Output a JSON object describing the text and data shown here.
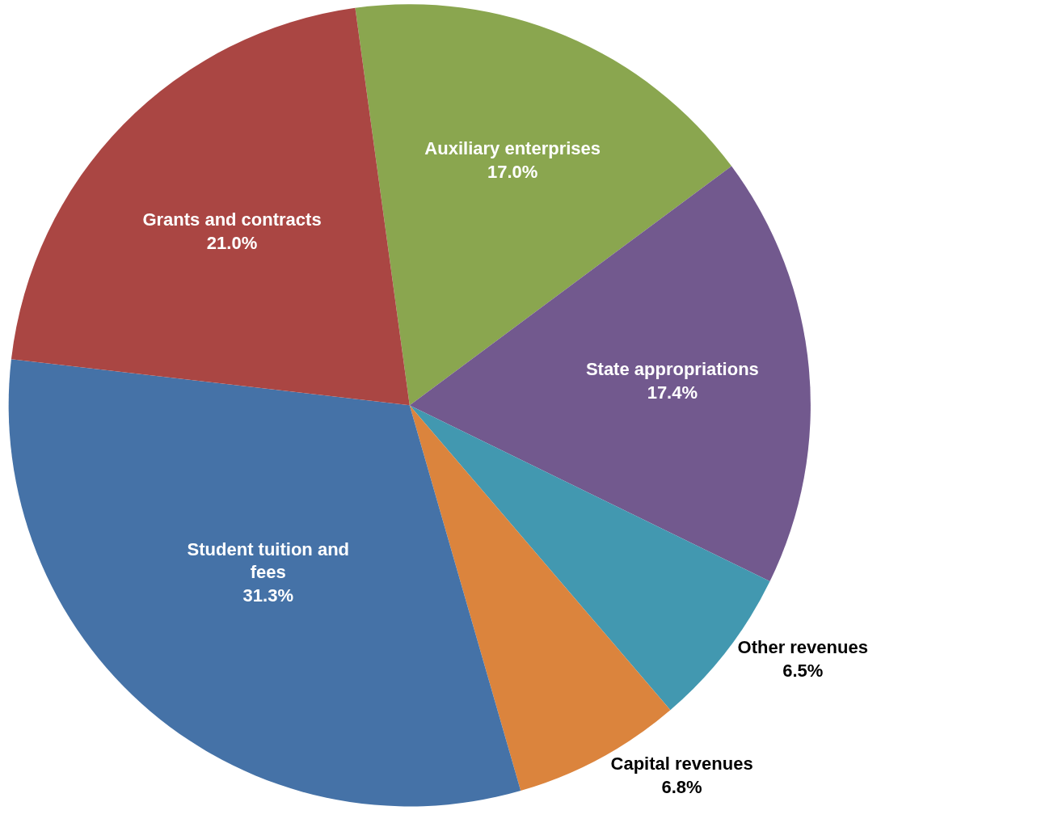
{
  "chart_data": {
    "type": "pie",
    "categories": [
      "Auxiliary enterprises",
      "State appropriations",
      "Other revenues",
      "Capital revenues",
      "Student tuition and fees",
      "Grants and contracts"
    ],
    "values": [
      17.0,
      17.4,
      6.5,
      6.8,
      31.3,
      21.0
    ],
    "value_labels": [
      "17.0%",
      "17.4%",
      "6.5%",
      "6.8%",
      "31.3%",
      "21.0%"
    ],
    "colors": [
      "#8aa64f",
      "#72598e",
      "#4298b0",
      "#db843d",
      "#4572a7",
      "#aa4643"
    ],
    "legend": false
  }
}
